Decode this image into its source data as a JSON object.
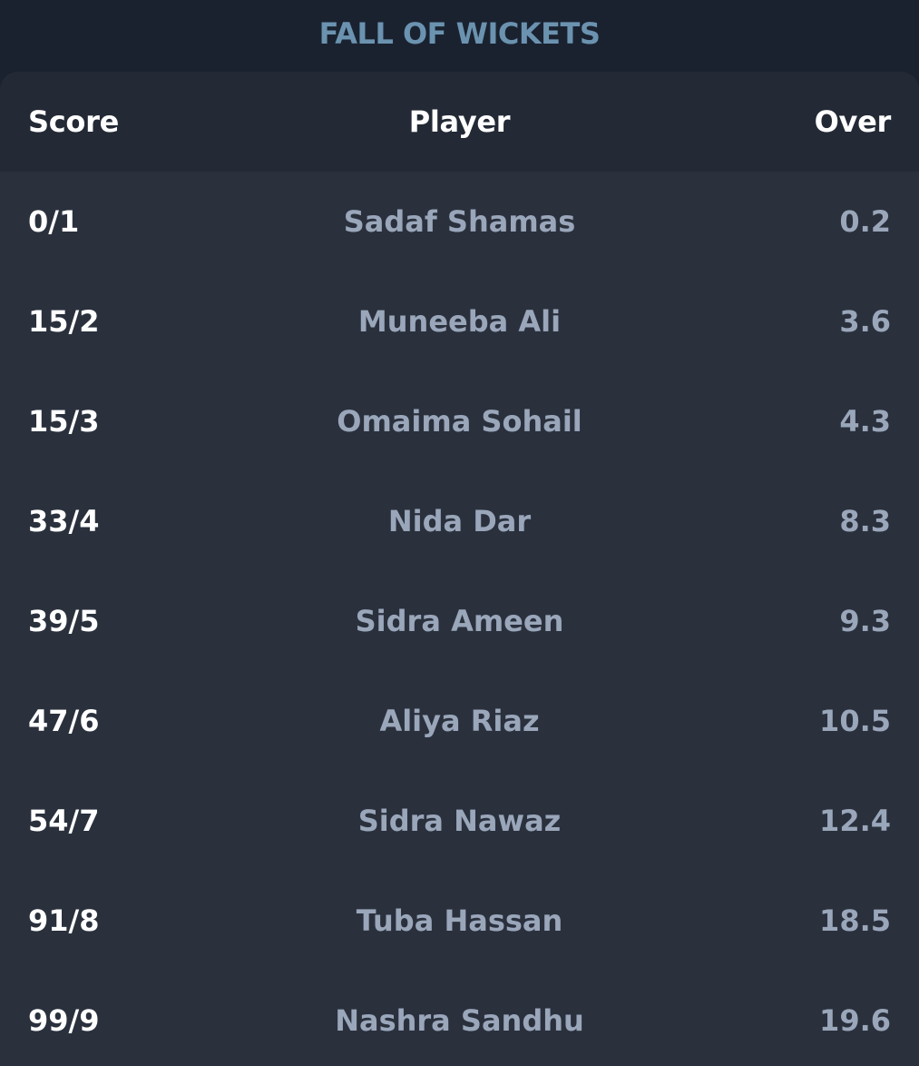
{
  "title": "FALL OF WICKETS",
  "columns": {
    "score": "Score",
    "player": "Player",
    "over": "Over"
  },
  "rows": [
    {
      "score": "0/1",
      "player": "Sadaf Shamas",
      "over": "0.2"
    },
    {
      "score": "15/2",
      "player": "Muneeba Ali",
      "over": "3.6"
    },
    {
      "score": "15/3",
      "player": "Omaima Sohail",
      "over": "4.3"
    },
    {
      "score": "33/4",
      "player": "Nida Dar",
      "over": "8.3"
    },
    {
      "score": "39/5",
      "player": "Sidra Ameen",
      "over": "9.3"
    },
    {
      "score": "47/6",
      "player": "Aliya Riaz",
      "over": "10.5"
    },
    {
      "score": "54/7",
      "player": "Sidra Nawaz",
      "over": "12.4"
    },
    {
      "score": "91/8",
      "player": "Tuba Hassan",
      "over": "18.5"
    },
    {
      "score": "99/9",
      "player": "Nashra Sandhu",
      "over": "19.6"
    }
  ],
  "colors": {
    "page_background": "#1a2230",
    "title": "#6b93b0",
    "card_background": "#2a313d",
    "header_background": "#232a35",
    "score_text": "#ffffff",
    "secondary_text": "#9aa6ba"
  }
}
